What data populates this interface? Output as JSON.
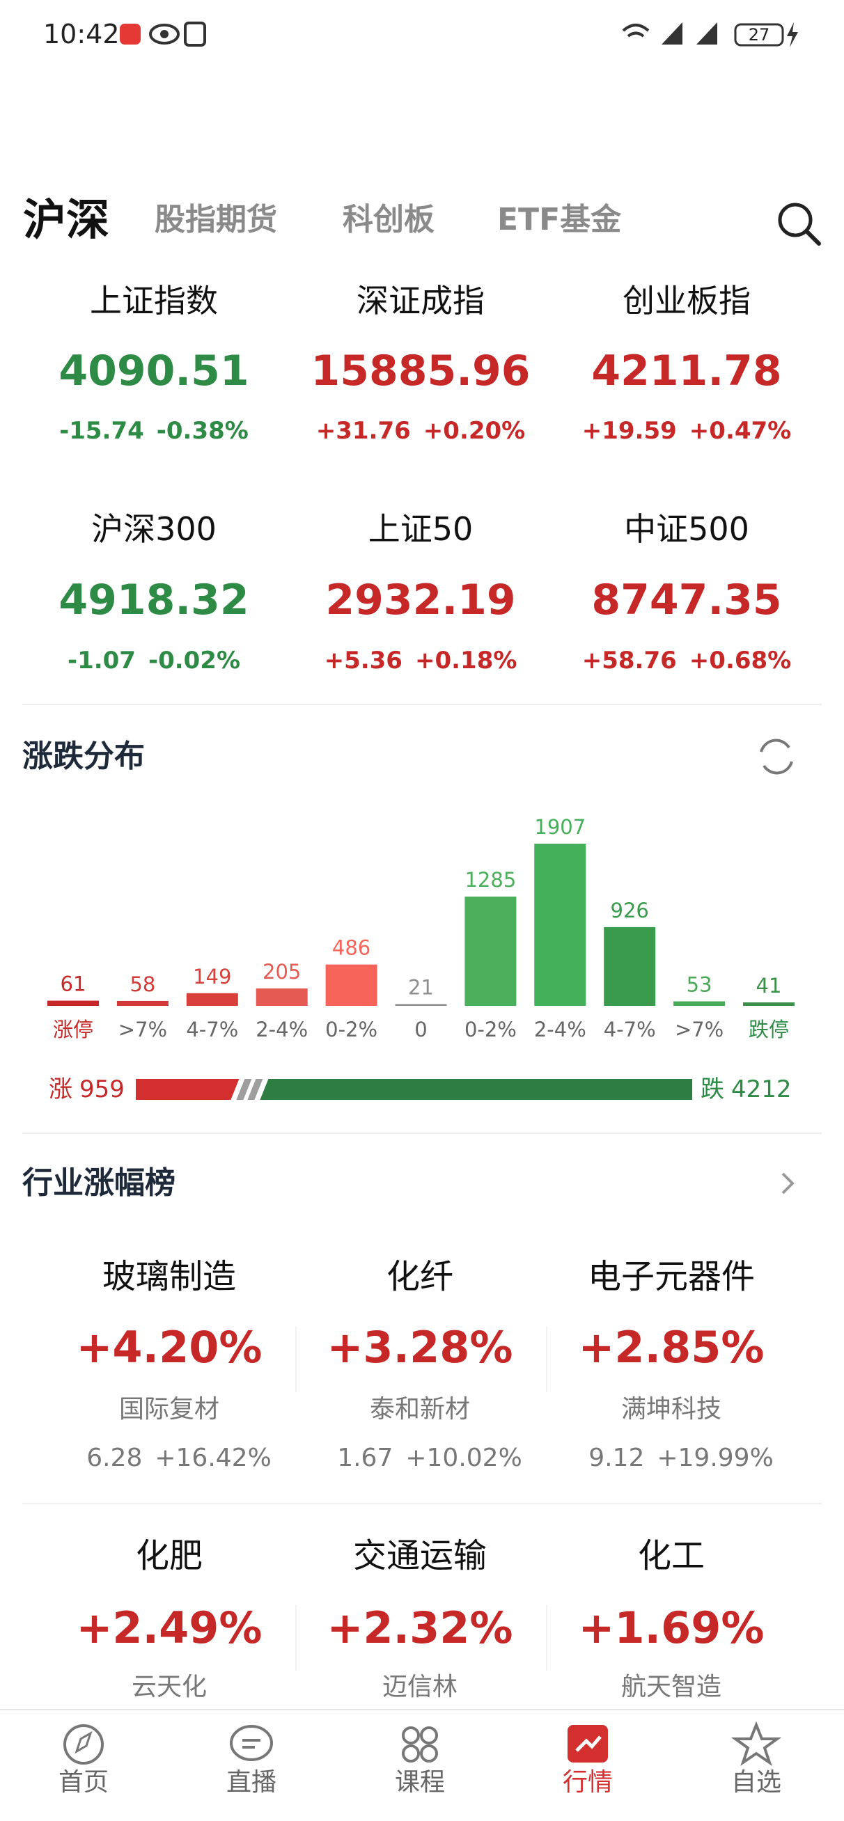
{
  "status_bar": {
    "time": "10:42",
    "battery": "27"
  },
  "tabs": [
    "沪深",
    "股指期货",
    "科创板",
    "ETF基金"
  ],
  "indices": [
    {
      "name": "上证指数",
      "value": "4090.51",
      "change": "-15.74",
      "pct": "-0.38%"
    },
    {
      "name": "深证成指",
      "value": "15885.96",
      "change": "+31.76",
      "pct": "+0.20%"
    },
    {
      "name": "创业板指",
      "value": "4211.78",
      "change": "+19.59",
      "pct": "+0.47%"
    },
    {
      "name": "沪深300",
      "value": "4918.32",
      "change": "-1.07",
      "pct": "-0.02%"
    },
    {
      "name": "上证50",
      "value": "2932.19",
      "change": "+5.36",
      "pct": "+0.18%"
    },
    {
      "name": "中证500",
      "value": "8747.35",
      "change": "+58.76",
      "pct": "+0.68%"
    }
  ],
  "distribution": {
    "title": "涨跌分布",
    "categories": [
      "涨停",
      ">7%",
      "4-7%",
      "2-4%",
      "0-2%",
      "0",
      "0-2%",
      "2-4%",
      "4-7%",
      ">7%",
      "跌停"
    ],
    "values": [
      61,
      58,
      149,
      205,
      486,
      21,
      1285,
      1907,
      926,
      53,
      41
    ],
    "colors": [
      "#c62828",
      "#d13a36",
      "#d9403b",
      "#e55a52",
      "#f7645a",
      "#8e8e8e",
      "#4caf5b",
      "#45b05a",
      "#3b9b4d",
      "#48a956",
      "#3b8f48"
    ],
    "up_label": "涨",
    "up_count": 959,
    "down_label": "跌",
    "down_count": 4212
  },
  "industry": {
    "title": "行业涨幅榜",
    "items": [
      {
        "name": "玻璃制造",
        "pct": "+4.20%",
        "stock": "国际复材",
        "price": "6.28",
        "stock_pct": "+16.42%"
      },
      {
        "name": "化纤",
        "pct": "+3.28%",
        "stock": "泰和新材",
        "price": "1.67",
        "stock_pct": "+10.02%"
      },
      {
        "name": "电子元器件",
        "pct": "+2.85%",
        "stock": "满坤科技",
        "price": "9.12",
        "stock_pct": "+19.99%"
      },
      {
        "name": "化肥",
        "pct": "+2.49%",
        "stock": "云天化"
      },
      {
        "name": "交通运输",
        "pct": "+2.32%",
        "stock": "迈信林"
      },
      {
        "name": "化工",
        "pct": "+1.69%",
        "stock": "航天智造"
      }
    ]
  },
  "nav": [
    "首页",
    "直播",
    "课程",
    "行情",
    "自选"
  ]
}
